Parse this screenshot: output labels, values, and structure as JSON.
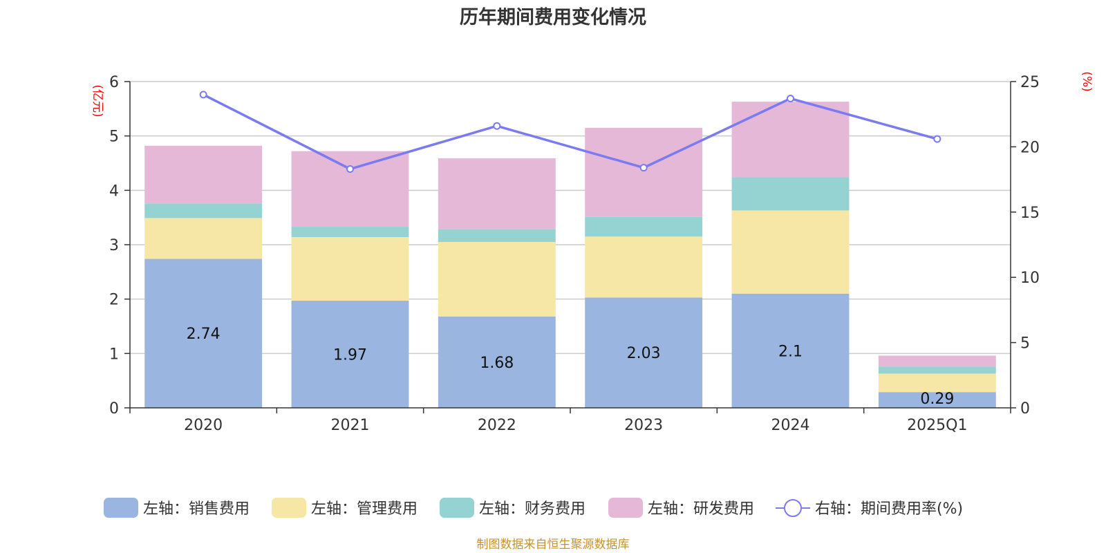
{
  "chart_data": {
    "type": "bar",
    "title": "历年期间费用变化情况",
    "categories": [
      "2020",
      "2021",
      "2022",
      "2023",
      "2024",
      "2025Q1"
    ],
    "left_axis": {
      "unit": "(亿元)",
      "ylim": [
        0,
        6
      ],
      "ticks": [
        "0",
        "1",
        "2",
        "3",
        "4",
        "5",
        "6"
      ]
    },
    "right_axis": {
      "unit": "(%)",
      "ylim": [
        0,
        25
      ],
      "ticks": [
        "0",
        "5",
        "10",
        "15",
        "20",
        "25"
      ]
    },
    "series": [
      {
        "name": "左轴：销售费用",
        "type": "bar",
        "axis": "left",
        "color": "#9ab6e0",
        "values": [
          2.74,
          1.97,
          1.68,
          2.03,
          2.1,
          0.29
        ],
        "labels": [
          "2.74",
          "1.97",
          "1.68",
          "2.03",
          "2.1",
          "0.29"
        ]
      },
      {
        "name": "左轴：管理费用",
        "type": "bar",
        "axis": "left",
        "color": "#f7e7a6",
        "values": [
          0.75,
          1.17,
          1.37,
          1.12,
          1.53,
          0.34
        ]
      },
      {
        "name": "左轴：财务费用",
        "type": "bar",
        "axis": "left",
        "color": "#95d3d3",
        "values": [
          0.27,
          0.19,
          0.23,
          0.36,
          0.61,
          0.13
        ]
      },
      {
        "name": "左轴：研发费用",
        "type": "bar",
        "axis": "left",
        "color": "#e6b8d8",
        "values": [
          1.06,
          1.39,
          1.31,
          1.64,
          1.39,
          0.2
        ]
      },
      {
        "name": "右轴：期间费用率(%)",
        "type": "line",
        "axis": "right",
        "color": "#7b7bf0",
        "values": [
          24.0,
          18.3,
          21.6,
          18.4,
          23.7,
          20.6
        ]
      }
    ],
    "grid": true,
    "legend_position": "bottom"
  },
  "source_text": "制图数据来自恒生聚源数据库"
}
